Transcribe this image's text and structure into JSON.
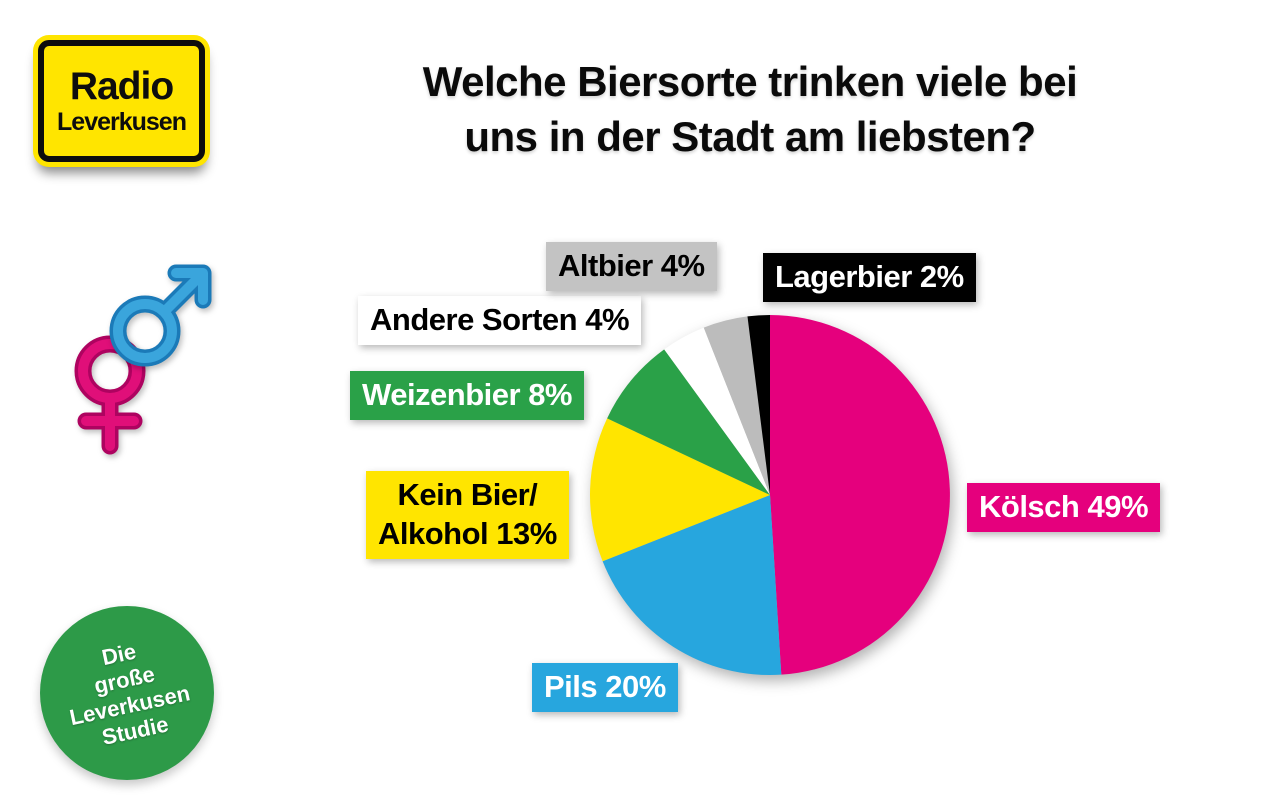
{
  "logo": {
    "line1": "Radio",
    "line2": "Leverkusen",
    "bg_color": "#ffe500"
  },
  "title": {
    "text": "Welche Biersorte trinken viele bei\nuns in der Stadt am liebsten?"
  },
  "badge": {
    "text": "Die\ngroße\nLeverkusen\nStudie",
    "bg_color": "#2d9a48",
    "text_color": "#ffffff"
  },
  "gender_icon": {
    "male_color": "#3aa5dc",
    "male_outline": "#1b7ab8",
    "female_color": "#e00f79",
    "female_outline": "#ae0360"
  },
  "chart_data": {
    "type": "pie",
    "title": "Welche Biersorte trinken viele bei uns in der Stadt am liebsten?",
    "unit": "%",
    "start_angle_deg": 0,
    "direction": "clockwise",
    "legend_position": "around-pie",
    "slices": [
      {
        "id": "koelsch",
        "label": "Kölsch",
        "value": 49,
        "color": "#e5007d",
        "label_text": "Kölsch 49%",
        "label_bg": "#e5007d",
        "label_fg": "#ffffff"
      },
      {
        "id": "pils",
        "label": "Pils",
        "value": 20,
        "color": "#27a6de",
        "label_text": "Pils 20%",
        "label_bg": "#27a6de",
        "label_fg": "#ffffff"
      },
      {
        "id": "kein-bier",
        "label": "Kein Bier/Alkohol",
        "value": 13,
        "color": "#ffe500",
        "label_text": "Kein Bier/\nAlkohol 13%",
        "label_bg": "#ffe500",
        "label_fg": "#000000"
      },
      {
        "id": "weizenbier",
        "label": "Weizenbier",
        "value": 8,
        "color": "#2aa148",
        "label_text": "Weizenbier 8%",
        "label_bg": "#2aa148",
        "label_fg": "#ffffff"
      },
      {
        "id": "andere-sorten",
        "label": "Andere Sorten",
        "value": 4,
        "color": "#ffffff",
        "label_text": "Andere Sorten 4%",
        "label_bg": "#ffffff",
        "label_fg": "#000000"
      },
      {
        "id": "altbier",
        "label": "Altbier",
        "value": 4,
        "color": "#bcbcbc",
        "label_text": "Altbier 4%",
        "label_bg": "#c3c3c3",
        "label_fg": "#000000"
      },
      {
        "id": "lagerbier",
        "label": "Lagerbier",
        "value": 2,
        "color": "#000000",
        "label_text": "Lagerbier 2%",
        "label_bg": "#000000",
        "label_fg": "#ffffff"
      }
    ]
  }
}
